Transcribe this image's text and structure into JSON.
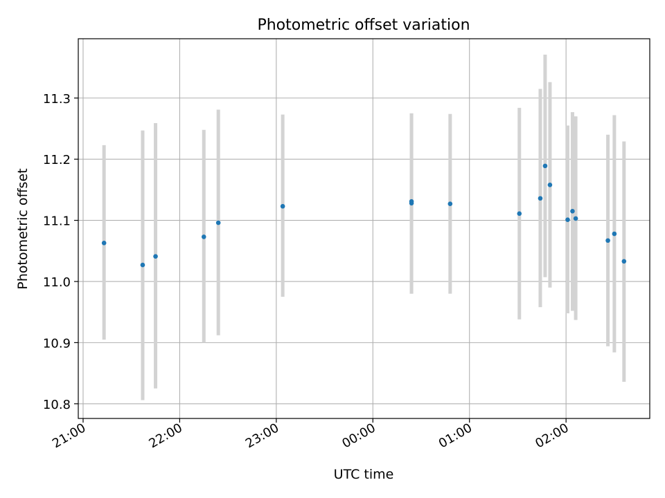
{
  "chart_data": {
    "type": "scatter",
    "title": "Photometric offset variation",
    "xlabel": "UTC time",
    "ylabel": "Photometric offset",
    "x_tick_labels": [
      "21:00",
      "22:00",
      "23:00",
      "00:00",
      "01:00",
      "02:00"
    ],
    "x_tick_values": [
      0,
      60,
      120,
      180,
      240,
      300
    ],
    "y_ticks": [
      10.8,
      10.9,
      11.0,
      11.1,
      11.2,
      11.3
    ],
    "y_tick_labels": [
      "10.8",
      "10.9",
      "11.0",
      "11.1",
      "11.2",
      "11.3"
    ],
    "xlim": [
      -3,
      352
    ],
    "ylim": [
      10.776,
      11.397
    ],
    "grid": true,
    "point_color": "#1f77b4",
    "errorbar_color": "#d3d3d3",
    "series": [
      {
        "x_time": [
          "21:13",
          "21:37",
          "21:45",
          "22:15",
          "22:24",
          "23:04",
          "00:24",
          "00:24",
          "00:48",
          "01:31",
          "01:44",
          "01:47",
          "01:50",
          "02:01",
          "02:04",
          "02:06",
          "02:26",
          "02:30",
          "02:36"
        ],
        "y": [
          11.063,
          11.027,
          11.041,
          11.073,
          11.096,
          11.123,
          11.128,
          11.131,
          11.127,
          11.111,
          11.136,
          11.189,
          11.158,
          11.101,
          11.115,
          11.103,
          11.067,
          11.078,
          11.033
        ],
        "y_low": [
          10.905,
          10.806,
          10.825,
          10.9,
          10.912,
          10.975,
          10.98,
          10.98,
          10.98,
          10.938,
          10.958,
          11.007,
          10.99,
          10.948,
          10.952,
          10.937,
          10.894,
          10.884,
          10.836
        ],
        "y_high": [
          11.223,
          11.247,
          11.259,
          11.248,
          11.281,
          11.273,
          11.275,
          11.275,
          11.274,
          11.284,
          11.315,
          11.371,
          11.326,
          11.255,
          11.277,
          11.27,
          11.24,
          11.272,
          11.229
        ]
      }
    ]
  }
}
